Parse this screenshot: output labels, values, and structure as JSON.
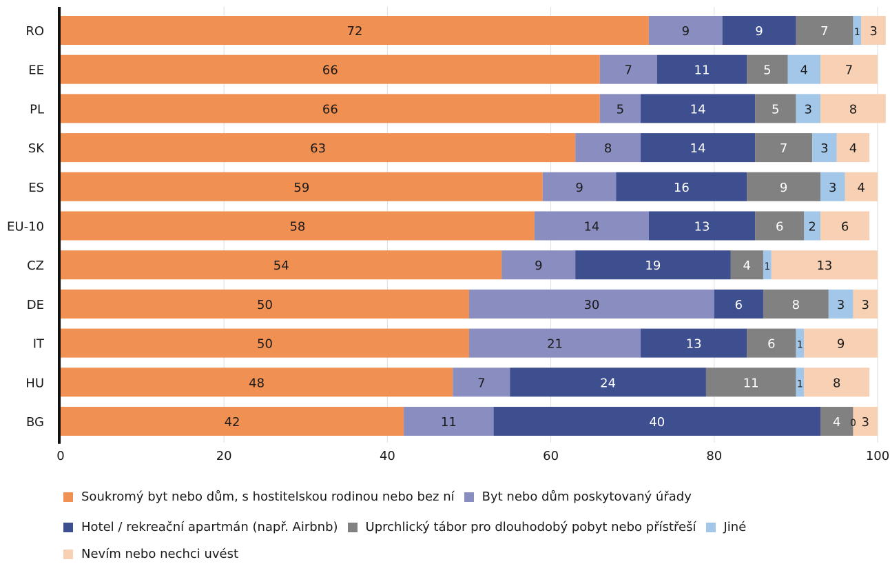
{
  "chart_data": {
    "type": "bar",
    "orientation": "horizontal",
    "stacked": true,
    "title": "",
    "xlabel": "",
    "ylabel": "",
    "xlim": [
      0,
      100
    ],
    "x_ticks": [
      "0",
      "20",
      "40",
      "60",
      "80",
      "100"
    ],
    "grid": "vertical",
    "legend_position": "bottom",
    "categories": [
      "RO",
      "EE",
      "PL",
      "SK",
      "ES",
      "EU-10",
      "CZ",
      "DE",
      "IT",
      "HU",
      "BG"
    ],
    "series": [
      {
        "name": "Soukromý byt nebo dům, s hostitelskou rodinou nebo bez ní",
        "color": "#f09052",
        "label_color": "#1a1a1a",
        "values": [
          72,
          66,
          66,
          63,
          59,
          58,
          54,
          50,
          50,
          48,
          42
        ]
      },
      {
        "name": "Byt nebo dům poskytovaný úřady",
        "color": "#8a8dc0",
        "label_color": "#1a1a1a",
        "values": [
          9,
          7,
          5,
          8,
          9,
          14,
          9,
          30,
          21,
          7,
          11
        ]
      },
      {
        "name": "Hotel / rekreační apartmán (např. Airbnb)",
        "color": "#3e4f8f",
        "label_color": "#ffffff",
        "values": [
          9,
          11,
          14,
          14,
          16,
          13,
          19,
          6,
          13,
          24,
          40
        ]
      },
      {
        "name": "Uprchlický tábor pro dlouhodobý pobyt nebo přístřeší",
        "color": "#818181",
        "label_color": "#ffffff",
        "values": [
          7,
          5,
          5,
          7,
          9,
          6,
          4,
          8,
          6,
          11,
          4
        ]
      },
      {
        "name": "Jiné",
        "color": "#a2c7e8",
        "label_color": "#1a1a1a",
        "values": [
          1,
          4,
          3,
          3,
          3,
          2,
          1,
          3,
          1,
          1,
          0
        ]
      },
      {
        "name": "Nevím nebo nechci uvést",
        "color": "#f8d0b4",
        "label_color": "#1a1a1a",
        "values": [
          3,
          7,
          8,
          4,
          4,
          6,
          13,
          3,
          9,
          8,
          3
        ]
      }
    ]
  }
}
